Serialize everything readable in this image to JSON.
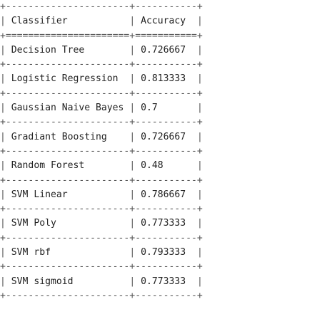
{
  "header": {
    "classifier": "Classifier",
    "accuracy": "Accuracy"
  },
  "rows": [
    {
      "classifier": "Decision Tree",
      "accuracy": "0.726667"
    },
    {
      "classifier": "Logistic Regression",
      "accuracy": "0.813333"
    },
    {
      "classifier": "Gaussian Naive Bayes",
      "accuracy": "0.7"
    },
    {
      "classifier": "Gradiant Boosting",
      "accuracy": "0.726667"
    },
    {
      "classifier": "Random Forest",
      "accuracy": "0.48"
    },
    {
      "classifier": "SVM Linear",
      "accuracy": "0.786667"
    },
    {
      "classifier": "SVM Poly",
      "accuracy": "0.773333"
    },
    {
      "classifier": "SVM rbf",
      "accuracy": "0.793333"
    },
    {
      "classifier": "SVM sigmoid",
      "accuracy": "0.773333"
    }
  ]
}
